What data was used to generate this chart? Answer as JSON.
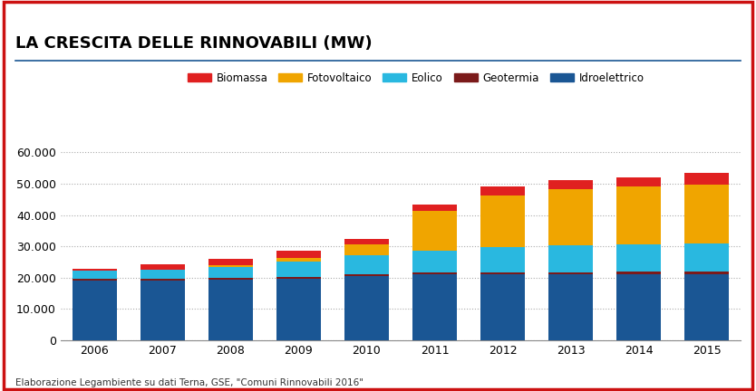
{
  "title": "LA CRESCITA DELLE RINNOVABILI (MW)",
  "years": [
    "2006",
    "2007",
    "2008",
    "2009",
    "2010",
    "2011",
    "2012",
    "2013",
    "2014",
    "2015"
  ],
  "series": {
    "Idroelettrico": [
      19000,
      19000,
      19200,
      19500,
      20500,
      21000,
      21000,
      21000,
      21000,
      21000
    ],
    "Geotermia": [
      700,
      700,
      700,
      710,
      720,
      760,
      780,
      790,
      800,
      810
    ],
    "Eolico": [
      2400,
      2700,
      3500,
      4900,
      5800,
      6900,
      8100,
      8500,
      8700,
      9000
    ],
    "Fotovoltaico": [
      50,
      100,
      500,
      1300,
      3600,
      12700,
      16500,
      18000,
      18500,
      19000
    ],
    "Biomassa": [
      800,
      1800,
      2000,
      2100,
      1700,
      2000,
      2800,
      3000,
      3100,
      3600
    ]
  },
  "colors": {
    "Idroelettrico": "#1a5694",
    "Geotermia": "#7b1a1a",
    "Eolico": "#29b8e0",
    "Fotovoltaico": "#f0a500",
    "Biomassa": "#e02020"
  },
  "ylim": [
    0,
    65000
  ],
  "yticks": [
    0,
    10000,
    20000,
    30000,
    40000,
    50000,
    60000
  ],
  "ytick_labels": [
    "0",
    "10.000",
    "20.000",
    "30.000",
    "40.000",
    "50.000",
    "60.000"
  ],
  "footnote": "Elaborazione Legambiente su dati Terna, GSE, \"Comuni Rinnovabili 2016\"",
  "border_color": "#cc1111",
  "title_line_color": "#1a5694",
  "background_color": "#ffffff",
  "legend_order": [
    "Biomassa",
    "Fotovoltaico",
    "Eolico",
    "Geotermia",
    "Idroelettrico"
  ],
  "stack_order": [
    "Idroelettrico",
    "Geotermia",
    "Eolico",
    "Fotovoltaico",
    "Biomassa"
  ]
}
